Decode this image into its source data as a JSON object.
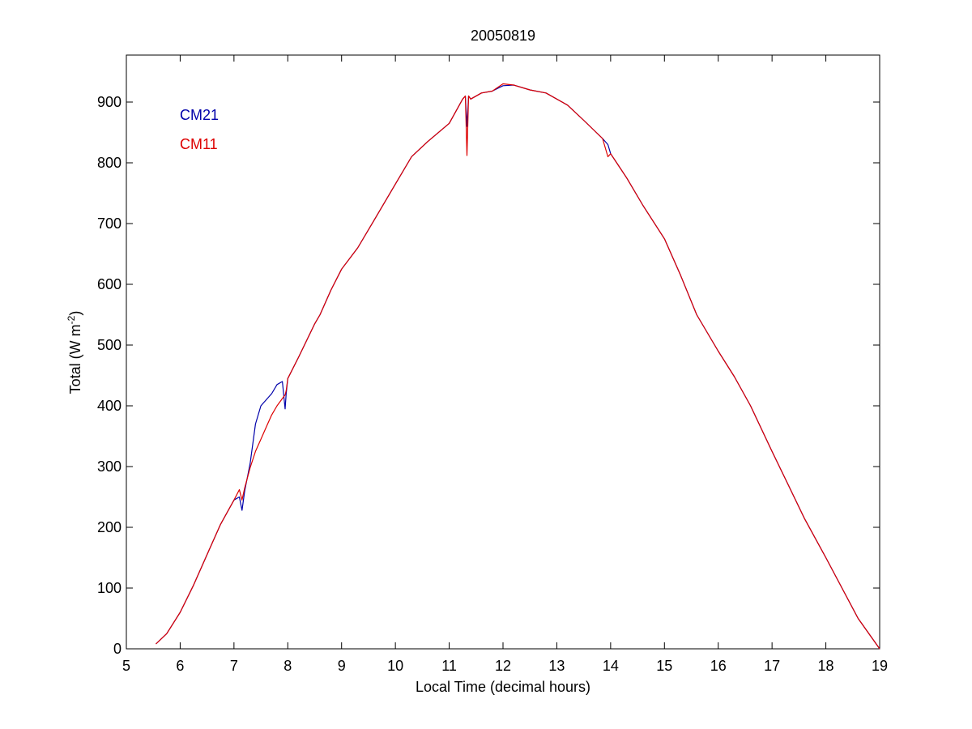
{
  "chart_data": {
    "type": "line",
    "title": "20050819",
    "xlabel": "Local Time (decimal hours)",
    "ylabel_main": "Total (W m",
    "ylabel_sup": "-2",
    "ylabel_close": ")",
    "xlim": [
      5,
      19
    ],
    "ylim": [
      0,
      980
    ],
    "xticks": [
      "5",
      "6",
      "7",
      "8",
      "9",
      "10",
      "11",
      "12",
      "13",
      "14",
      "15",
      "16",
      "17",
      "18",
      "19"
    ],
    "yticks": [
      "0",
      "100",
      "200",
      "300",
      "400",
      "500",
      "600",
      "700",
      "800",
      "900"
    ],
    "grid": false,
    "legend": {
      "placement": "top-left"
    },
    "series": [
      {
        "name": "CM21",
        "color": "#0000aa",
        "x": [
          5.55,
          5.75,
          6.0,
          6.25,
          6.5,
          6.75,
          7.0,
          7.1,
          7.15,
          7.2,
          7.3,
          7.4,
          7.5,
          7.6,
          7.7,
          7.8,
          7.9,
          7.95,
          7.97,
          8.0,
          8.2,
          8.5,
          8.6,
          8.8,
          9.0,
          9.3,
          9.6,
          10.0,
          10.3,
          10.6,
          11.0,
          11.25,
          11.3,
          11.33,
          11.36,
          11.4,
          11.6,
          11.8,
          12.0,
          12.2,
          12.5,
          12.8,
          13.2,
          13.5,
          13.85,
          13.95,
          14.0,
          14.3,
          14.6,
          15.0,
          15.3,
          15.6,
          16.0,
          16.3,
          16.6,
          17.0,
          17.3,
          17.6,
          18.0,
          18.3,
          18.6,
          19.0
        ],
        "y": [
          8,
          25,
          60,
          105,
          155,
          205,
          245,
          250,
          228,
          260,
          305,
          370,
          400,
          410,
          420,
          435,
          440,
          395,
          420,
          445,
          480,
          535,
          550,
          590,
          625,
          660,
          705,
          765,
          810,
          835,
          865,
          905,
          910,
          860,
          910,
          905,
          915,
          918,
          927,
          928,
          920,
          915,
          895,
          870,
          840,
          830,
          815,
          775,
          730,
          675,
          615,
          550,
          490,
          448,
          400,
          325,
          270,
          215,
          150,
          100,
          50,
          0
        ]
      },
      {
        "name": "CM11",
        "color": "#dd0000",
        "x": [
          5.55,
          5.75,
          6.0,
          6.25,
          6.5,
          6.75,
          7.0,
          7.1,
          7.15,
          7.2,
          7.3,
          7.4,
          7.5,
          7.6,
          7.7,
          7.8,
          7.9,
          7.95,
          7.97,
          8.0,
          8.2,
          8.5,
          8.6,
          8.8,
          9.0,
          9.3,
          9.6,
          10.0,
          10.3,
          10.6,
          11.0,
          11.25,
          11.3,
          11.33,
          11.36,
          11.4,
          11.6,
          11.8,
          12.0,
          12.2,
          12.5,
          12.8,
          13.2,
          13.5,
          13.85,
          13.95,
          14.0,
          14.3,
          14.6,
          15.0,
          15.3,
          15.6,
          16.0,
          16.3,
          16.6,
          17.0,
          17.3,
          17.6,
          18.0,
          18.3,
          18.6,
          19.0
        ],
        "y": [
          8,
          25,
          60,
          105,
          155,
          205,
          245,
          262,
          245,
          265,
          298,
          325,
          345,
          365,
          385,
          400,
          412,
          418,
          425,
          445,
          480,
          535,
          550,
          590,
          625,
          660,
          705,
          765,
          810,
          835,
          865,
          905,
          910,
          812,
          910,
          905,
          915,
          918,
          930,
          928,
          920,
          915,
          895,
          870,
          840,
          810,
          815,
          775,
          730,
          675,
          615,
          550,
          490,
          448,
          400,
          325,
          270,
          215,
          150,
          100,
          50,
          0
        ]
      }
    ]
  }
}
